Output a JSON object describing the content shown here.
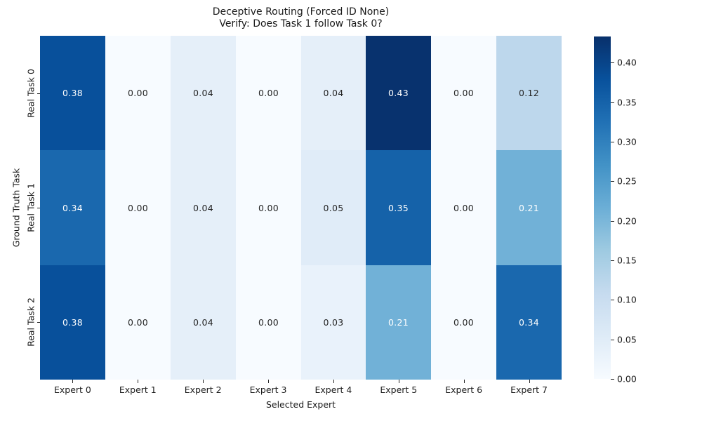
{
  "chart_data": {
    "type": "heatmap",
    "title_line1": "Deceptive Routing (Forced ID None)",
    "title_line2": "Verify: Does Task 1 follow Task 0?",
    "xlabel": "Selected Expert",
    "ylabel": "Ground Truth Task",
    "x_categories": [
      "Expert 0",
      "Expert 1",
      "Expert 2",
      "Expert 3",
      "Expert 4",
      "Expert 5",
      "Expert 6",
      "Expert 7"
    ],
    "y_categories": [
      "Real Task 0",
      "Real Task 1",
      "Real Task 2"
    ],
    "values": [
      [
        0.38,
        0.0,
        0.04,
        0.0,
        0.04,
        0.43,
        0.0,
        0.12
      ],
      [
        0.34,
        0.0,
        0.04,
        0.0,
        0.05,
        0.35,
        0.0,
        0.21
      ],
      [
        0.38,
        0.0,
        0.04,
        0.0,
        0.03,
        0.21,
        0.0,
        0.34
      ]
    ],
    "annotations": [
      [
        "0.38",
        "0.00",
        "0.04",
        "0.00",
        "0.04",
        "0.43",
        "0.00",
        "0.12"
      ],
      [
        "0.34",
        "0.00",
        "0.04",
        "0.00",
        "0.05",
        "0.35",
        "0.00",
        "0.21"
      ],
      [
        "0.38",
        "0.00",
        "0.04",
        "0.00",
        "0.03",
        "0.21",
        "0.00",
        "0.34"
      ]
    ],
    "vmin": 0.0,
    "vmax": 0.433,
    "colormap": "Blues",
    "colormap_stops": [
      "#f7fbff",
      "#deebf7",
      "#c6dbef",
      "#9ecae1",
      "#6baed6",
      "#4292c6",
      "#2171b5",
      "#08519c",
      "#08306b"
    ],
    "colorbar_tick_labels": [
      "0.00",
      "0.05",
      "0.10",
      "0.15",
      "0.20",
      "0.25",
      "0.30",
      "0.35",
      "0.40"
    ],
    "colorbar_tick_values": [
      0.0,
      0.05,
      0.1,
      0.15,
      0.2,
      0.25,
      0.3,
      0.35,
      0.4
    ],
    "colorbar_position": "right",
    "grid": false,
    "background": "#ffffff",
    "text_colors": {
      "on_light": "#262626",
      "on_dark": "#ffffff"
    }
  }
}
